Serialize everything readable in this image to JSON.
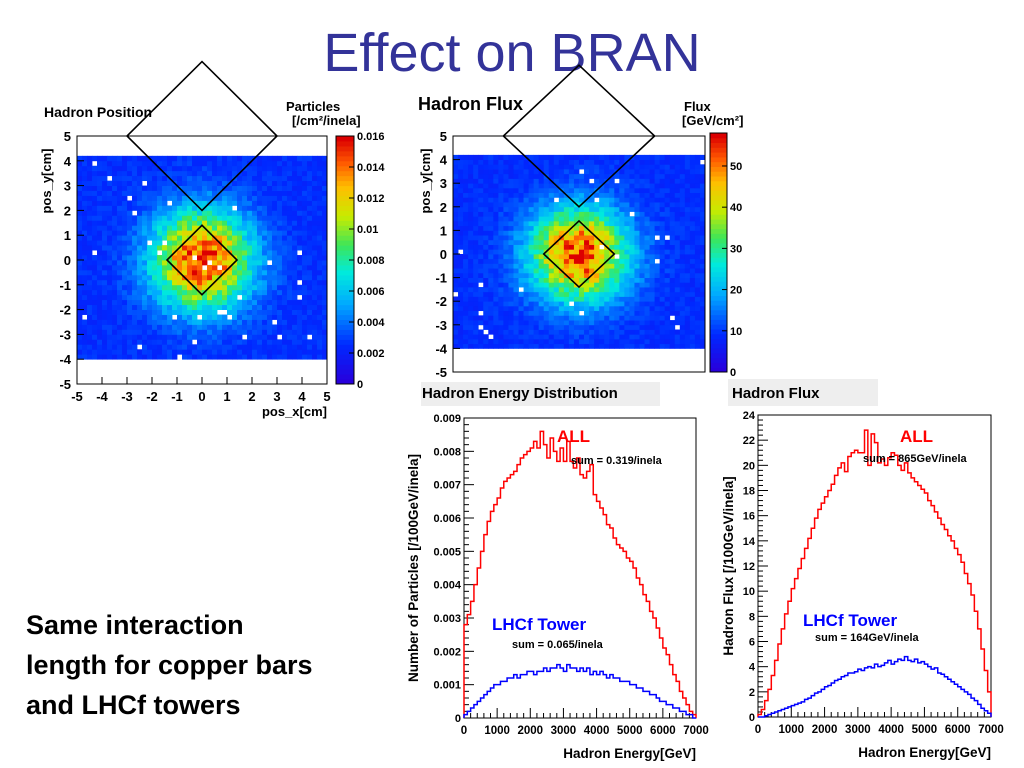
{
  "slide": {
    "title": "Effect on BRAN",
    "note_lines": [
      "Same interaction",
      "length for copper bars",
      "and LHCf towers"
    ]
  },
  "chart_data": [
    {
      "type": "heatmap",
      "title": "Hadron Position",
      "xlabel": "pos_x[cm]",
      "ylabel": "pos_y[cm]",
      "xlim": [
        -5,
        5
      ],
      "ylim": [
        -5,
        5
      ],
      "xticks": [
        "-5",
        "-4",
        "-3",
        "-2",
        "-1",
        "0",
        "1",
        "2",
        "3",
        "4",
        "5"
      ],
      "yticks": [
        "-5",
        "-4",
        "-3",
        "-2",
        "-1",
        "0",
        "1",
        "2",
        "3",
        "4",
        "5"
      ],
      "colorbar": {
        "label_line1": "Particles",
        "label_line2": "[/cm²/inela]",
        "range": [
          0,
          0.016
        ],
        "ticks": [
          "0",
          "0.002",
          "0.004",
          "0.006",
          "0.008",
          "0.01",
          "0.012",
          "0.014",
          "0.016"
        ]
      },
      "peak": 0.0155,
      "data_extent_y": [
        -4,
        4.2
      ]
    },
    {
      "type": "heatmap",
      "title": "Hadron Flux",
      "xlim": [
        -5,
        5
      ],
      "ylim": [
        -5,
        5
      ],
      "ylabel": "pos_y[cm]",
      "yticks": [
        "-5",
        "-4",
        "-3",
        "-2",
        "-1",
        "0",
        "1",
        "2",
        "3",
        "4",
        "5"
      ],
      "colorbar": {
        "label_line1": "Flux",
        "label_line2": "[GeV/cm²]",
        "range": [
          0,
          58
        ],
        "ticks": [
          "0",
          "10",
          "20",
          "30",
          "40",
          "50"
        ]
      },
      "peak": 55,
      "data_extent_y": [
        -4,
        4.2
      ]
    },
    {
      "type": "line",
      "title": "Hadron Energy Distribution",
      "xlabel": "Hadron Energy[GeV]",
      "ylabel": "Number of Particles [/100GeV/inela]",
      "xlim": [
        0,
        7000
      ],
      "ylim": [
        0,
        0.009
      ],
      "xticks": [
        "0",
        "1000",
        "2000",
        "3000",
        "4000",
        "5000",
        "6000",
        "7000"
      ],
      "yticks": [
        "0",
        "0.001",
        "0.002",
        "0.003",
        "0.004",
        "0.005",
        "0.006",
        "0.007",
        "0.008",
        "0.009"
      ],
      "bin_width": 100,
      "series": [
        {
          "name": "ALL",
          "annotation": "sum = 0.319/inela",
          "color": "#ff0000",
          "values": [
            0.0028,
            0.0031,
            0.0035,
            0.004,
            0.0045,
            0.005,
            0.0055,
            0.0059,
            0.0062,
            0.0064,
            0.0066,
            0.0069,
            0.0071,
            0.0072,
            0.0073,
            0.0074,
            0.0076,
            0.0078,
            0.0079,
            0.008,
            0.0081,
            0.0083,
            0.0081,
            0.0086,
            0.0082,
            0.0078,
            0.0084,
            0.008,
            0.0077,
            0.0081,
            0.0077,
            0.0083,
            0.0077,
            0.0075,
            0.0078,
            0.0073,
            0.0072,
            0.0074,
            0.0076,
            0.0067,
            0.0065,
            0.0063,
            0.0061,
            0.0058,
            0.0057,
            0.0054,
            0.0052,
            0.0051,
            0.005,
            0.0048,
            0.0047,
            0.0045,
            0.0042,
            0.004,
            0.0037,
            0.0035,
            0.0032,
            0.003,
            0.0027,
            0.0024,
            0.0021,
            0.0019,
            0.0016,
            0.0013,
            0.0011,
            0.0008,
            0.0006,
            0.0004,
            0.0002,
            0.0001
          ]
        },
        {
          "name": "LHCf Tower",
          "annotation": "sum = 0.065/inela",
          "color": "#0000ff",
          "values": [
            0.0001,
            0.0002,
            0.0003,
            0.0004,
            0.0005,
            0.0006,
            0.0007,
            0.0008,
            0.0009,
            0.001,
            0.001,
            0.0011,
            0.0011,
            0.0012,
            0.0012,
            0.0013,
            0.0012,
            0.0013,
            0.0013,
            0.0014,
            0.0014,
            0.0013,
            0.0014,
            0.0014,
            0.0015,
            0.0014,
            0.0015,
            0.0015,
            0.0016,
            0.0015,
            0.0014,
            0.0016,
            0.0015,
            0.0015,
            0.0014,
            0.0015,
            0.0014,
            0.0015,
            0.0013,
            0.0014,
            0.0013,
            0.0014,
            0.0013,
            0.0012,
            0.0013,
            0.0012,
            0.0012,
            0.0011,
            0.0011,
            0.0011,
            0.001,
            0.001,
            0.0009,
            0.0009,
            0.0008,
            0.0008,
            0.0007,
            0.0007,
            0.0006,
            0.0005,
            0.0005,
            0.0004,
            0.0004,
            0.0003,
            0.0003,
            0.0002,
            0.0002,
            0.0001,
            0.0001,
            0.0
          ]
        }
      ]
    },
    {
      "type": "line",
      "title": "Hadron Flux",
      "xlabel": "Hadron Energy[GeV]",
      "ylabel": "Hadron Flux [/100GeV/inela]",
      "xlim": [
        0,
        7000
      ],
      "ylim": [
        0,
        24
      ],
      "xticks": [
        "0",
        "1000",
        "2000",
        "3000",
        "4000",
        "5000",
        "6000",
        "7000"
      ],
      "yticks": [
        "0",
        "2",
        "4",
        "6",
        "8",
        "10",
        "12",
        "14",
        "16",
        "18",
        "20",
        "22",
        "24"
      ],
      "bin_width": 100,
      "series": [
        {
          "name": "ALL",
          "annotation": "sum = 865GeV/inela",
          "color": "#ff0000",
          "values": [
            0.2,
            0.6,
            1.3,
            2.2,
            3.3,
            4.5,
            5.8,
            7.0,
            8.2,
            9.2,
            10.2,
            11.0,
            11.8,
            12.6,
            13.4,
            14.2,
            15.0,
            15.8,
            16.5,
            17.0,
            17.5,
            18.0,
            18.5,
            19.2,
            19.8,
            20.2,
            19.5,
            20.7,
            21.0,
            21.2,
            21.0,
            21.0,
            22.8,
            20.0,
            22.5,
            21.8,
            20.2,
            20.5,
            20.0,
            20.6,
            21.0,
            20.8,
            20.0,
            19.6,
            20.2,
            19.4,
            19.0,
            18.7,
            18.4,
            18.1,
            17.8,
            17.2,
            16.8,
            16.3,
            15.8,
            15.3,
            14.9,
            14.4,
            14.0,
            13.4,
            12.9,
            12.3,
            11.4,
            10.6,
            9.7,
            8.4,
            7.0,
            5.4,
            3.7,
            2.0
          ]
        },
        {
          "name": "LHCf Tower",
          "annotation": "sum = 164GeV/inela",
          "color": "#0000ff",
          "values": [
            0.0,
            0.0,
            0.1,
            0.2,
            0.3,
            0.4,
            0.5,
            0.6,
            0.7,
            0.8,
            0.9,
            1.0,
            1.1,
            1.2,
            1.4,
            1.5,
            1.7,
            1.9,
            2.0,
            2.2,
            2.4,
            2.5,
            2.7,
            2.9,
            3.0,
            3.2,
            3.3,
            3.5,
            3.5,
            3.6,
            3.8,
            3.7,
            3.9,
            4.0,
            3.9,
            4.2,
            4.0,
            4.1,
            4.3,
            4.5,
            4.2,
            4.4,
            4.6,
            4.5,
            4.8,
            4.5,
            4.4,
            4.6,
            4.3,
            4.4,
            4.2,
            4.0,
            3.8,
            3.9,
            3.5,
            3.4,
            3.2,
            3.0,
            2.8,
            2.6,
            2.4,
            2.2,
            2.0,
            1.8,
            1.5,
            1.3,
            1.0,
            0.7,
            0.5,
            0.3
          ]
        }
      ]
    }
  ]
}
